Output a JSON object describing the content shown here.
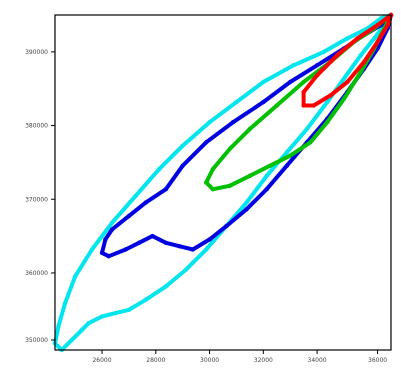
{
  "chart_data": {
    "type": "line",
    "title": "",
    "xlabel": "",
    "ylabel": "",
    "grid": false,
    "xlim": [
      0,
      1
    ],
    "ylim": [
      0,
      1
    ],
    "x_ticks": [
      {
        "value": 0.14,
        "label": "26000"
      },
      {
        "value": 0.3,
        "label": "28000"
      },
      {
        "value": 0.46,
        "label": "30000"
      },
      {
        "value": 0.62,
        "label": "32000"
      },
      {
        "value": 0.78,
        "label": "34000"
      },
      {
        "value": 0.96,
        "label": "36000"
      }
    ],
    "y_ticks": [
      {
        "value": 0.03,
        "label": "350000"
      },
      {
        "value": 0.23,
        "label": "360000"
      },
      {
        "value": 0.45,
        "label": "370000"
      },
      {
        "value": 0.67,
        "label": "380000"
      },
      {
        "value": 0.89,
        "label": "390000"
      }
    ],
    "series": [
      {
        "color": "#00e5ee",
        "stroke_width": 4,
        "closed": true,
        "x": [
          1.0,
          0.97,
          0.93,
          0.87,
          0.8,
          0.71,
          0.62,
          0.54,
          0.46,
          0.38,
          0.31,
          0.24,
          0.17,
          0.11,
          0.06,
          0.03,
          0.01,
          0.0,
          0.02,
          0.05,
          0.08,
          0.1,
          0.14,
          0.18,
          0.22,
          0.27,
          0.33,
          0.39,
          0.45,
          0.51,
          0.57,
          0.63,
          0.69,
          0.75,
          0.81,
          0.86,
          0.91,
          0.95,
          0.98,
          1.0
        ],
        "y": [
          1.0,
          0.99,
          0.96,
          0.93,
          0.89,
          0.85,
          0.8,
          0.74,
          0.68,
          0.61,
          0.54,
          0.46,
          0.38,
          0.3,
          0.22,
          0.14,
          0.07,
          0.02,
          0.0,
          0.03,
          0.06,
          0.08,
          0.1,
          0.11,
          0.12,
          0.15,
          0.19,
          0.24,
          0.3,
          0.37,
          0.44,
          0.52,
          0.59,
          0.66,
          0.74,
          0.81,
          0.88,
          0.93,
          0.97,
          1.0
        ]
      },
      {
        "color": "#0000e0",
        "stroke_width": 4,
        "closed": true,
        "x": [
          1.0,
          0.97,
          0.92,
          0.86,
          0.78,
          0.7,
          0.62,
          0.53,
          0.45,
          0.38,
          0.33,
          0.27,
          0.22,
          0.17,
          0.15,
          0.14,
          0.16,
          0.21,
          0.25,
          0.29,
          0.33,
          0.37,
          0.41,
          0.46,
          0.51,
          0.57,
          0.63,
          0.69,
          0.75,
          0.81,
          0.87,
          0.92,
          0.96,
          0.99,
          1.0
        ],
        "y": [
          1.0,
          0.97,
          0.94,
          0.9,
          0.85,
          0.8,
          0.74,
          0.68,
          0.62,
          0.55,
          0.48,
          0.44,
          0.4,
          0.36,
          0.33,
          0.29,
          0.28,
          0.3,
          0.32,
          0.34,
          0.32,
          0.31,
          0.3,
          0.33,
          0.37,
          0.42,
          0.48,
          0.55,
          0.62,
          0.69,
          0.77,
          0.84,
          0.9,
          0.96,
          1.0
        ]
      },
      {
        "color": "#00c000",
        "stroke_width": 4,
        "closed": true,
        "x": [
          1.0,
          0.95,
          0.89,
          0.82,
          0.74,
          0.66,
          0.58,
          0.52,
          0.47,
          0.45,
          0.47,
          0.52,
          0.58,
          0.64,
          0.7,
          0.76,
          0.81,
          0.86,
          0.91,
          0.95,
          0.98,
          1.0
        ],
        "y": [
          1.0,
          0.96,
          0.92,
          0.86,
          0.8,
          0.73,
          0.66,
          0.6,
          0.54,
          0.5,
          0.48,
          0.49,
          0.52,
          0.55,
          0.58,
          0.62,
          0.68,
          0.75,
          0.83,
          0.9,
          0.96,
          1.0
        ]
      },
      {
        "color": "#ff0000",
        "stroke_width": 4,
        "closed": true,
        "x": [
          1.0,
          0.96,
          0.9,
          0.84,
          0.78,
          0.74,
          0.74,
          0.77,
          0.82,
          0.87,
          0.92,
          0.96,
          0.99,
          1.0
        ],
        "y": [
          1.0,
          0.97,
          0.93,
          0.88,
          0.82,
          0.77,
          0.73,
          0.73,
          0.76,
          0.8,
          0.86,
          0.92,
          0.97,
          1.0
        ]
      }
    ]
  }
}
